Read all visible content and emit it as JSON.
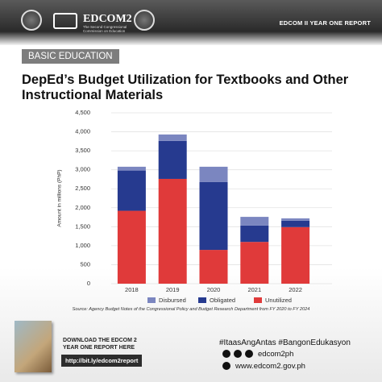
{
  "header": {
    "brand": "EDCOM2",
    "brand_subtitle": "The Second Congressional Commission on Education",
    "report": "EDCOM II YEAR ONE REPORT"
  },
  "tag": "BASIC EDUCATION",
  "chart_data": {
    "type": "stacked-bar",
    "title": "DepEd’s Budget Utilization for Textbooks and Other Instructional Materials",
    "y_label": "Amount in millions (PhP)",
    "categories": [
      "2018",
      "2019",
      "2020",
      "2021",
      "2022"
    ],
    "series": [
      {
        "name": "Disbursed",
        "color": "#7b86c0",
        "values": [
          100,
          170,
          400,
          230,
          60
        ]
      },
      {
        "name": "Obligated",
        "color": "#263a8f",
        "values": [
          1060,
          1000,
          1790,
          430,
          170
        ]
      },
      {
        "name": "Unutilized",
        "color": "#e03a3a",
        "values": [
          1920,
          2760,
          890,
          1100,
          1490
        ]
      }
    ],
    "ylim": [
      0,
      4500
    ],
    "yticks": [
      0,
      500,
      {
        "value": 1000,
        "label": "1,000"
      },
      {
        "value": 1500,
        "label": "1,500"
      },
      {
        "value": 2000,
        "label": "2,000"
      },
      {
        "value": 2500,
        "label": "2,500"
      },
      {
        "value": 3000,
        "label": "3,000"
      },
      {
        "value": 3500,
        "label": "3,500"
      },
      {
        "value": 4000,
        "label": "4,000"
      },
      {
        "value": 4500,
        "label": "4,500"
      }
    ],
    "grid": true,
    "legend": "bottom"
  },
  "source": "Source: Agency Budget Notes of the Congressional Policy and Budget Research Department from FY 2020 to FY 2024",
  "footer": {
    "download": "DOWNLOAD THE EDCOM 2 YEAR ONE REPORT HERE",
    "link": "http://bit.ly/edcom2report",
    "hashtags": "#ItaasAngAntas #BangonEdukasyon",
    "social": "edcom2ph",
    "website": "www.edcom2.gov.ph"
  }
}
